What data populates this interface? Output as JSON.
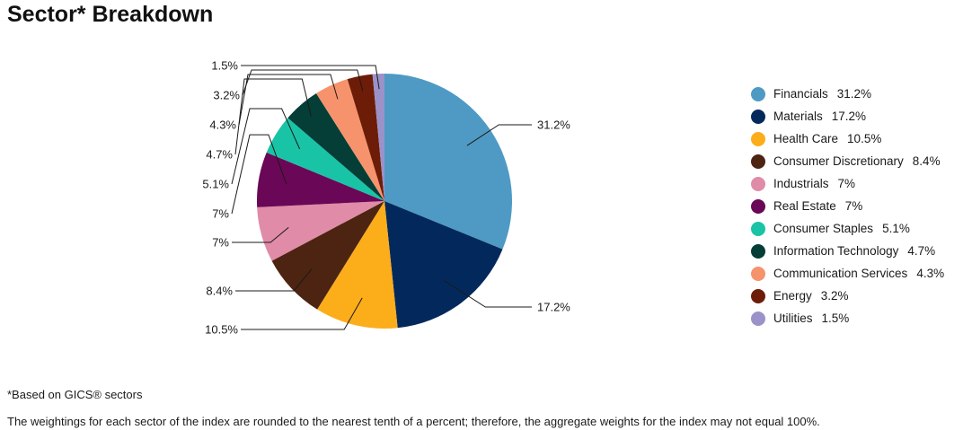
{
  "title": "Sector* Breakdown",
  "footnotes": {
    "gics": "*Based on GICS® sectors",
    "rounding": "The weightings for each sector of the index are rounded to the nearest tenth of a percent; therefore, the aggregate weights for the index may not equal 100%."
  },
  "chart_data": {
    "type": "pie",
    "title": "Sector* Breakdown",
    "legend_position": "right",
    "categories": [
      "Financials",
      "Materials",
      "Health Care",
      "Consumer Discretionary",
      "Industrials",
      "Real Estate",
      "Consumer Staples",
      "Information Technology",
      "Communication Services",
      "Energy",
      "Utilities"
    ],
    "values": [
      31.2,
      17.2,
      10.5,
      8.4,
      7,
      7,
      5.1,
      4.7,
      4.3,
      3.2,
      1.5
    ],
    "data_labels": [
      "31.2%",
      "17.2%",
      "10.5%",
      "8.4%",
      "7%",
      "7%",
      "5.1%",
      "4.7%",
      "4.3%",
      "3.2%",
      "1.5%"
    ],
    "legend_values": [
      "31.2%",
      "17.2%",
      "10.5%",
      "8.4%",
      "7%",
      "7%",
      "5.1%",
      "4.7%",
      "4.3%",
      "3.2%",
      "1.5%"
    ],
    "colors": [
      "#4e9ac4",
      "#03295c",
      "#fcad1a",
      "#4c2411",
      "#e08ba7",
      "#6b0757",
      "#19c3a6",
      "#053d37",
      "#f6936c",
      "#6d1c07",
      "#9a92c9"
    ]
  }
}
